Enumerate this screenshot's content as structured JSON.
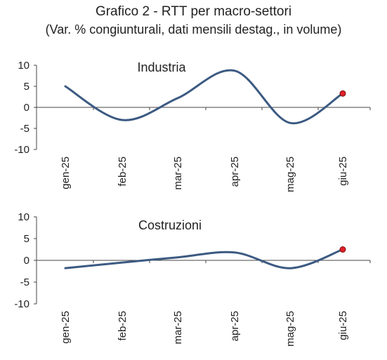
{
  "title": "Grafico 2 - RTT per macro-settori",
  "subtitle": "(Var. % congiunturali, dati mensili destag., in volume)",
  "series_color": "#3c5a82",
  "marker_color": "#e0202a",
  "chart_data": [
    {
      "type": "line",
      "title": "Industria",
      "categories": [
        "gen-25",
        "feb-25",
        "mar-25",
        "apr-25",
        "mag-25",
        "giu-25"
      ],
      "values": [
        5.0,
        -3.0,
        2.2,
        8.7,
        -3.7,
        3.3
      ],
      "ylim": [
        -10,
        10
      ],
      "yticks": [
        10,
        5,
        0,
        -5,
        -10
      ],
      "highlight_last": true
    },
    {
      "type": "line",
      "title": "Costruzioni",
      "categories": [
        "gen-25",
        "feb-25",
        "mar-25",
        "apr-25",
        "mag-25",
        "giu-25"
      ],
      "values": [
        -1.8,
        -0.5,
        0.7,
        1.8,
        -1.8,
        2.5
      ],
      "ylim": [
        -10,
        10
      ],
      "yticks": [
        10,
        5,
        0,
        -5,
        -10
      ],
      "highlight_last": true
    }
  ]
}
